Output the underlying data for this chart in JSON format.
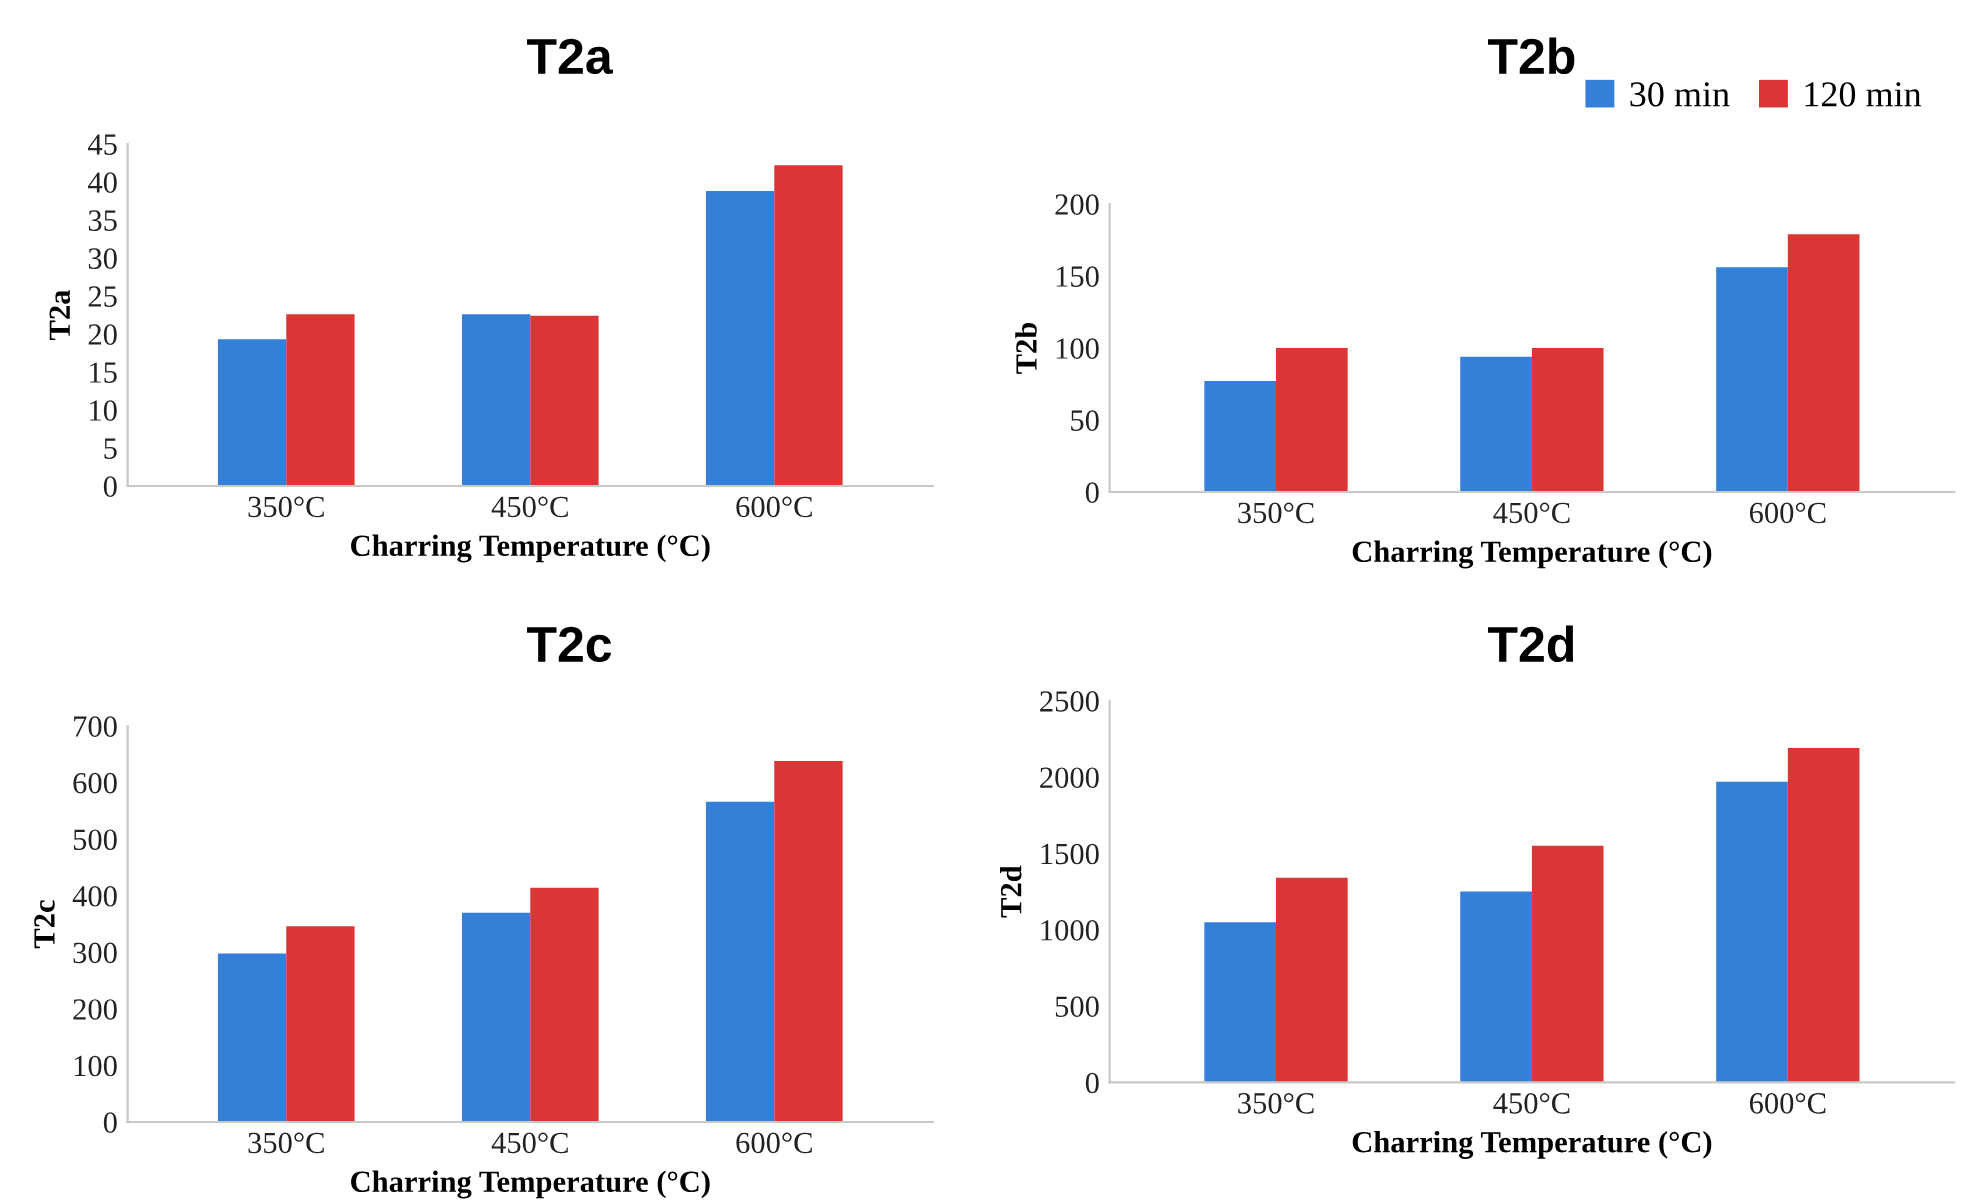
{
  "chart_data": [
    {
      "type": "bar",
      "title": "T2a",
      "xlabel": "Charring Temperature (°C)",
      "ylabel": "T2a",
      "categories": [
        "350°C",
        "450°C",
        "600°C"
      ],
      "series": [
        {
          "color": "#347fd8",
          "values": [
            19.3,
            22.6,
            38.8
          ]
        },
        {
          "color": "#d93635",
          "values": [
            22.6,
            22.4,
            42.2
          ]
        }
      ],
      "ylim": [
        0,
        45
      ],
      "yticks": [
        0,
        5,
        10,
        15,
        20,
        25,
        30,
        35,
        40,
        45
      ],
      "grid": false
    },
    {
      "type": "bar",
      "title": "T2b",
      "xlabel": "Charring Temperature (°C)",
      "ylabel": "T2b",
      "categories": [
        "350°C",
        "450°C",
        "600°C"
      ],
      "series": [
        {
          "name": "30 min",
          "color": "#347fd8",
          "values": [
            77,
            94,
            156
          ]
        },
        {
          "name": "120 min",
          "color": "#d93635",
          "values": [
            100,
            100,
            179
          ]
        }
      ],
      "ylim": [
        0,
        200
      ],
      "yticks": [
        0,
        50,
        100,
        150,
        200
      ],
      "grid": false,
      "legend": "top right"
    },
    {
      "type": "bar",
      "title": "T2c",
      "xlabel": "Charring Temperature (°C)",
      "ylabel": "T2c",
      "categories": [
        "350°C",
        "450°C",
        "600°C"
      ],
      "series": [
        {
          "color": "#347fd8",
          "values": [
            298,
            370,
            566
          ]
        },
        {
          "color": "#d93635",
          "values": [
            346,
            414,
            638
          ]
        }
      ],
      "ylim": [
        0,
        700
      ],
      "yticks": [
        0,
        100,
        200,
        300,
        400,
        500,
        600,
        700
      ],
      "grid": false
    },
    {
      "type": "bar",
      "title": "T2d",
      "xlabel": "Charring Temperature (°C)",
      "ylabel": "T2d",
      "categories": [
        "350°C",
        "450°C",
        "600°C"
      ],
      "series": [
        {
          "color": "#347fd8",
          "values": [
            1050,
            1250,
            1970
          ]
        },
        {
          "color": "#d93635",
          "values": [
            1340,
            1550,
            2190
          ]
        }
      ],
      "ylim": [
        0,
        2500
      ],
      "yticks": [
        0,
        500,
        1000,
        1500,
        2000,
        2500
      ],
      "grid": false
    }
  ]
}
